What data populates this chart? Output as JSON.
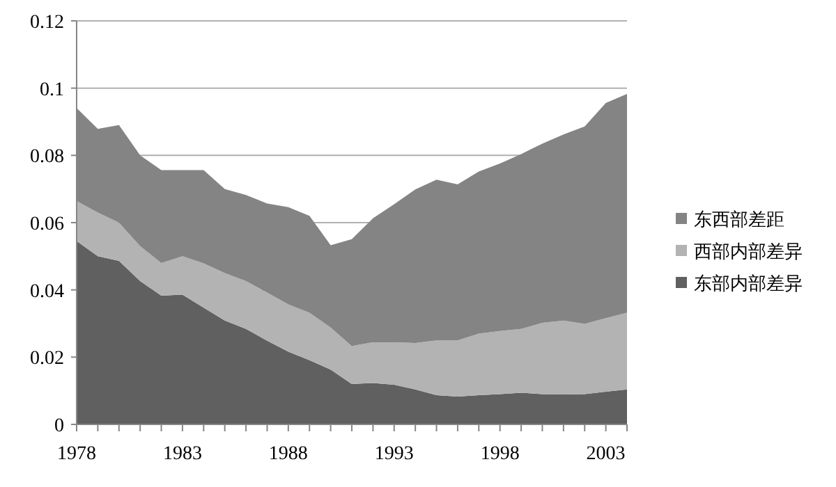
{
  "chart_data": {
    "type": "area",
    "stacked": true,
    "x": [
      1978,
      1979,
      1980,
      1981,
      1982,
      1983,
      1984,
      1985,
      1986,
      1987,
      1988,
      1989,
      1990,
      1991,
      1992,
      1993,
      1994,
      1995,
      1996,
      1997,
      1998,
      1999,
      2000,
      2001,
      2002,
      2003,
      2004
    ],
    "series": [
      {
        "name": "东部内部差异",
        "color": "#606060",
        "values": [
          0.0545,
          0.05,
          0.0486,
          0.0426,
          0.0383,
          0.0386,
          0.0347,
          0.0309,
          0.0284,
          0.0249,
          0.0216,
          0.0191,
          0.0163,
          0.012,
          0.0123,
          0.0118,
          0.0104,
          0.0087,
          0.0083,
          0.0087,
          0.009,
          0.0094,
          0.009,
          0.0089,
          0.009,
          0.0097,
          0.0104
        ]
      },
      {
        "name": "西部内部差异",
        "color": "#b3b3b3",
        "values": [
          0.0119,
          0.013,
          0.0114,
          0.0104,
          0.0097,
          0.0114,
          0.0132,
          0.0141,
          0.0142,
          0.0143,
          0.0141,
          0.0141,
          0.0125,
          0.0113,
          0.0121,
          0.0126,
          0.0138,
          0.0163,
          0.0167,
          0.0183,
          0.0188,
          0.019,
          0.0212,
          0.022,
          0.0209,
          0.0219,
          0.0228
        ]
      },
      {
        "name": "东西部差距",
        "color": "#848484",
        "values": [
          0.0277,
          0.0249,
          0.029,
          0.027,
          0.0276,
          0.0256,
          0.0277,
          0.025,
          0.0256,
          0.0265,
          0.0289,
          0.0288,
          0.0245,
          0.0318,
          0.0369,
          0.0411,
          0.0457,
          0.0478,
          0.0464,
          0.0482,
          0.0498,
          0.052,
          0.0533,
          0.0553,
          0.0587,
          0.064,
          0.0651
        ]
      }
    ],
    "xlim": [
      1978,
      2004
    ],
    "xticks": [
      1978,
      {
        "value": 1979,
        "label": null
      },
      {
        "value": 1980,
        "label": null
      },
      {
        "value": 1981,
        "label": null
      },
      {
        "value": 1982,
        "label": null
      },
      1983,
      {
        "value": 1984,
        "label": null
      },
      {
        "value": 1985,
        "label": null
      },
      {
        "value": 1986,
        "label": null
      },
      {
        "value": 1987,
        "label": null
      },
      1988,
      {
        "value": 1989,
        "label": null
      },
      {
        "value": 1990,
        "label": null
      },
      {
        "value": 1991,
        "label": null
      },
      {
        "value": 1992,
        "label": null
      },
      1993,
      {
        "value": 1994,
        "label": null
      },
      {
        "value": 1995,
        "label": null
      },
      {
        "value": 1996,
        "label": null
      },
      {
        "value": 1997,
        "label": null
      },
      1998,
      {
        "value": 1999,
        "label": null
      },
      {
        "value": 2000,
        "label": null
      },
      {
        "value": 2001,
        "label": null
      },
      {
        "value": 2002,
        "label": null
      },
      2003,
      {
        "value": 2004,
        "label": null
      }
    ],
    "ylim": [
      0,
      0.12
    ],
    "yticks": [
      0,
      0.02,
      0.04,
      0.06,
      0.08,
      0.1,
      0.12
    ],
    "grid": "y",
    "legend": "right"
  }
}
